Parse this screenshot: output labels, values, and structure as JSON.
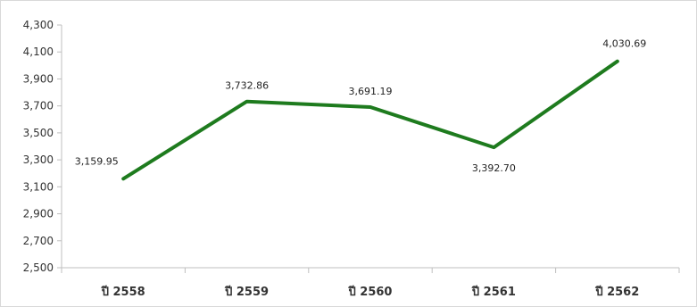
{
  "chart_data": {
    "type": "line",
    "categories": [
      "ปี 2558",
      "ปี 2559",
      "ปี 2560",
      "ปี 2561",
      "ปี 2562"
    ],
    "series": [
      {
        "values": [
          3159.95,
          3732.86,
          3691.19,
          3392.7,
          4030.69
        ],
        "value_labels": [
          "3,159.95",
          "3,732.86",
          "3,691.19",
          "3,392.70",
          "4,030.69"
        ],
        "color": "#1e7b1e"
      }
    ],
    "ylim": [
      2500,
      4300
    ],
    "yticks": [
      2500,
      2700,
      2900,
      3100,
      3300,
      3500,
      3700,
      3900,
      4100,
      4300
    ],
    "ytick_labels": [
      "2,500",
      "2,700",
      "2,900",
      "3,100",
      "3,300",
      "3,500",
      "3,700",
      "3,900",
      "4,100",
      "4,300"
    ],
    "grid": false,
    "legend": "none",
    "axis_color": "#bfbfbf"
  }
}
